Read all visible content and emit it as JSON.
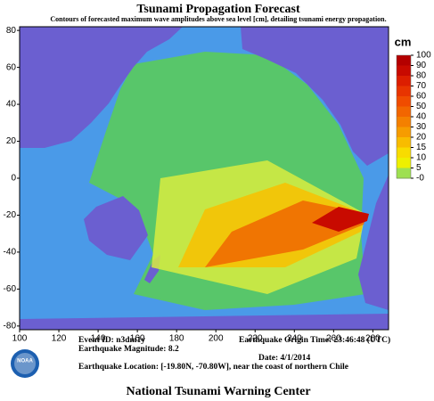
{
  "header": {
    "title": "Tsunami Propagation Forecast",
    "subtitle": "Contours of forecasted maximum wave amplitudes above sea level [cm], detailing tsunami energy propagation."
  },
  "map": {
    "xlim": [
      100,
      288
    ],
    "xticks": [
      100,
      120,
      140,
      160,
      180,
      200,
      220,
      240,
      260,
      280
    ],
    "ylim": [
      -82,
      82
    ],
    "yticks": [
      -80,
      -60,
      -40,
      -20,
      0,
      20,
      40,
      60,
      80
    ]
  },
  "colorbar": {
    "unit": "cm",
    "ticks": [
      100,
      90,
      80,
      70,
      60,
      50,
      40,
      30,
      20,
      15,
      10,
      5,
      {
        "value": 0,
        "label": "-0"
      }
    ],
    "colors": [
      "#b40000",
      "#c80a00",
      "#dc1e00",
      "#e83400",
      "#f04c00",
      "#f26600",
      "#f48000",
      "#f69c00",
      "#f8bc00",
      "#f8dc00",
      "#eef000",
      "#9ee050"
    ]
  },
  "event": {
    "id": "Event ID: n3dm1y",
    "magnitude": "Earthquake Magnitude: 8.2",
    "location": "Earthquake Location: [-19.80N, -70.80W], near the coast of northern Chile",
    "origin_time": "Earthquake Origin Time: 23:46:48 (UTC)",
    "date": "Date: 4/1/2014"
  },
  "logo": "NOAA",
  "footer": "National Tsunami Warning Center"
}
